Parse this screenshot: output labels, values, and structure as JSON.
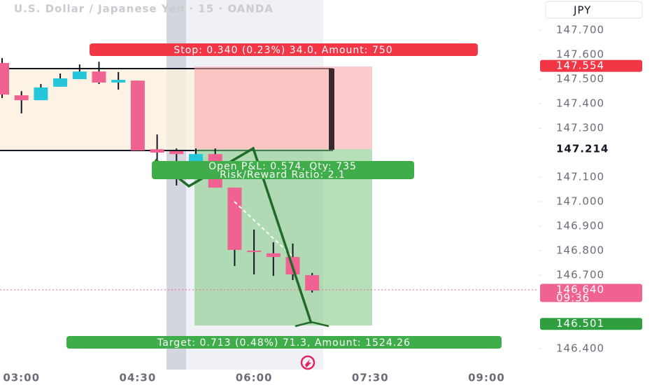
{
  "chart_data": {
    "type": "candlestick",
    "title": "U.S. Dollar / Japanese Yen · 15 · OANDA",
    "currency": "JPY",
    "categories": [
      null,
      "03:00",
      null,
      null,
      null,
      null,
      null,
      "04:30",
      null,
      null,
      null,
      null,
      null,
      "06:00",
      null,
      null,
      null,
      null,
      null,
      "07:30",
      null,
      null,
      null,
      null,
      null,
      "09:00",
      null,
      null
    ],
    "open": [
      147.566,
      147.434,
      147.414,
      147.469,
      147.5,
      147.531,
      147.486,
      147.494,
      147.214,
      147.206,
      147.16,
      147.194,
      147.057,
      146.8,
      146.789,
      146.774,
      146.7,
      null,
      null,
      null,
      null,
      null,
      null,
      null,
      null,
      null,
      null,
      null
    ],
    "high": [
      147.586,
      147.451,
      147.48,
      147.523,
      147.56,
      147.571,
      147.529,
      147.494,
      147.274,
      147.217,
      147.217,
      147.217,
      147.057,
      146.886,
      146.834,
      146.829,
      146.709,
      null,
      null,
      null,
      null,
      null,
      null,
      null,
      null,
      null,
      null,
      null
    ],
    "low": [
      147.423,
      147.36,
      147.414,
      147.469,
      147.5,
      147.48,
      147.457,
      147.206,
      147.16,
      147.066,
      147.149,
      147.057,
      146.737,
      146.703,
      146.697,
      146.68,
      146.629,
      null,
      null,
      null,
      null,
      null,
      null,
      null,
      null,
      null,
      null,
      null
    ],
    "close": [
      147.437,
      147.414,
      147.466,
      147.503,
      147.531,
      147.486,
      147.497,
      147.209,
      147.2,
      147.194,
      147.194,
      147.057,
      146.803,
      146.794,
      146.774,
      146.703,
      146.637,
      null,
      null,
      null,
      null,
      null,
      null,
      null,
      null,
      null,
      null,
      null
    ],
    "up_color": "#26c6da",
    "down_color": "#f06292",
    "ylim": [
      146.323,
      147.823
    ],
    "yticks": [
      {
        "value": 147.7,
        "label": "147.700"
      },
      {
        "value": 147.6,
        "label": "147.600"
      },
      {
        "value": 147.5,
        "label": "147.500"
      },
      {
        "value": 147.4,
        "label": "147.400"
      },
      {
        "value": 147.3,
        "label": "147.300"
      },
      {
        "value": 147.1,
        "label": "147.100"
      },
      {
        "value": 147.0,
        "label": "147.000"
      },
      {
        "value": 146.9,
        "label": "146.900"
      },
      {
        "value": 146.8,
        "label": "146.800"
      },
      {
        "value": 146.7,
        "label": "146.700"
      },
      {
        "value": 146.4,
        "label": "146.400"
      }
    ],
    "markers": [
      {
        "price": 147.554,
        "color": "#f23645",
        "text_color": "#ffffff"
      },
      {
        "price": 147.214,
        "color": "#ffffff",
        "text_color": "#131722"
      },
      {
        "price": {
          "value": 146.64,
          "label": "146.640"
        },
        "time": "09:36",
        "color": "#f06292",
        "text_color": "#ffffff"
      },
      {
        "price": 146.501,
        "color": "#2e9e3e",
        "text_color": "#ffffff"
      }
    ],
    "position": {
      "stop_label": "Stop: 0.340 (0.23%) 34.0, Amount: 750",
      "target_label": "Target: 0.713 (0.48%) 71.3, Amount: 1524.26",
      "open_label": "Open P&L: 0.574, Qty: 735",
      "ratio_label": "Risk/Reward Ratio: 2.1"
    }
  }
}
